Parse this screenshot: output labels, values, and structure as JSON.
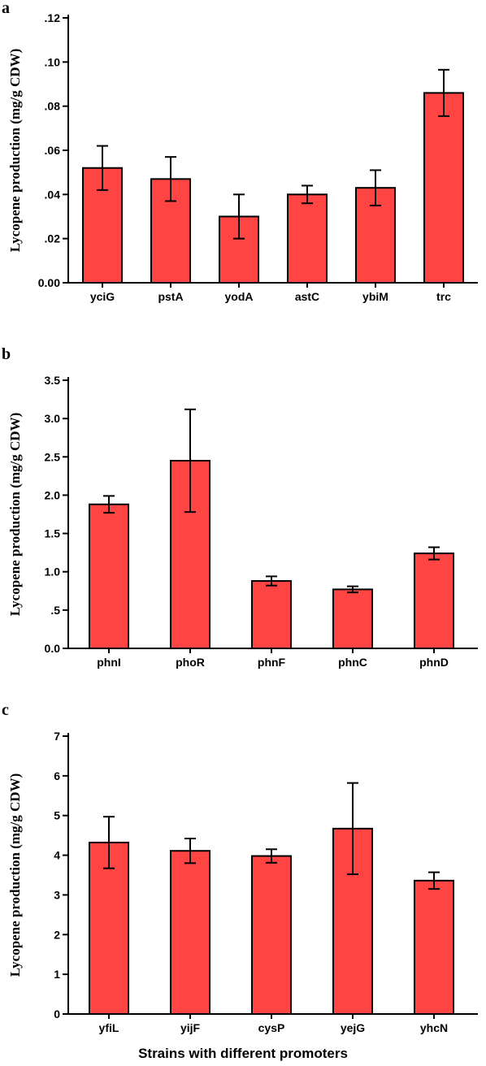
{
  "xlabel": "Strains with different promoters",
  "colors": {
    "bar": "#ff4444",
    "axis": "#000000"
  },
  "chart_data": [
    {
      "type": "bar",
      "panel": "a",
      "ylabel": "Lycopene production (mg/g CDW)",
      "ylim": [
        0,
        0.12
      ],
      "yticks": [
        0,
        0.02,
        0.04,
        0.06,
        0.08,
        0.1,
        0.12
      ],
      "ytick_labels": [
        "0.00",
        ".02",
        ".04",
        ".06",
        ".08",
        ".10",
        ".12"
      ],
      "categories": [
        "yciG",
        "pstA",
        "yodA",
        "astC",
        "ybiM",
        "trc"
      ],
      "values": [
        0.052,
        0.047,
        0.03,
        0.04,
        0.043,
        0.086
      ],
      "errors": [
        0.01,
        0.01,
        0.01,
        0.004,
        0.008,
        0.0105
      ]
    },
    {
      "type": "bar",
      "panel": "b",
      "ylabel": "Lycopene production (mg/g CDW)",
      "ylim": [
        0,
        3.5
      ],
      "yticks": [
        0,
        0.5,
        1.0,
        1.5,
        2.0,
        2.5,
        3.0,
        3.5
      ],
      "ytick_labels": [
        "0.0",
        ".5",
        "1.0",
        "1.5",
        "2.0",
        "2.5",
        "3.0",
        "3.5"
      ],
      "categories": [
        "phnI",
        "phoR",
        "phnF",
        "phnC",
        "phnD"
      ],
      "values": [
        1.88,
        2.45,
        0.88,
        0.77,
        1.24
      ],
      "errors": [
        0.11,
        0.67,
        0.06,
        0.04,
        0.08
      ]
    },
    {
      "type": "bar",
      "panel": "c",
      "ylabel": "Lycopene production (mg/g CDW)",
      "ylim": [
        0,
        7
      ],
      "yticks": [
        0,
        1,
        2,
        3,
        4,
        5,
        6,
        7
      ],
      "ytick_labels": [
        "0",
        "1",
        "2",
        "3",
        "4",
        "5",
        "6",
        "7"
      ],
      "categories": [
        "yfiL",
        "yijF",
        "cysP",
        "yejG",
        "yhcN"
      ],
      "values": [
        4.32,
        4.11,
        3.98,
        4.67,
        3.36
      ],
      "errors": [
        0.65,
        0.31,
        0.17,
        1.15,
        0.21
      ]
    }
  ]
}
